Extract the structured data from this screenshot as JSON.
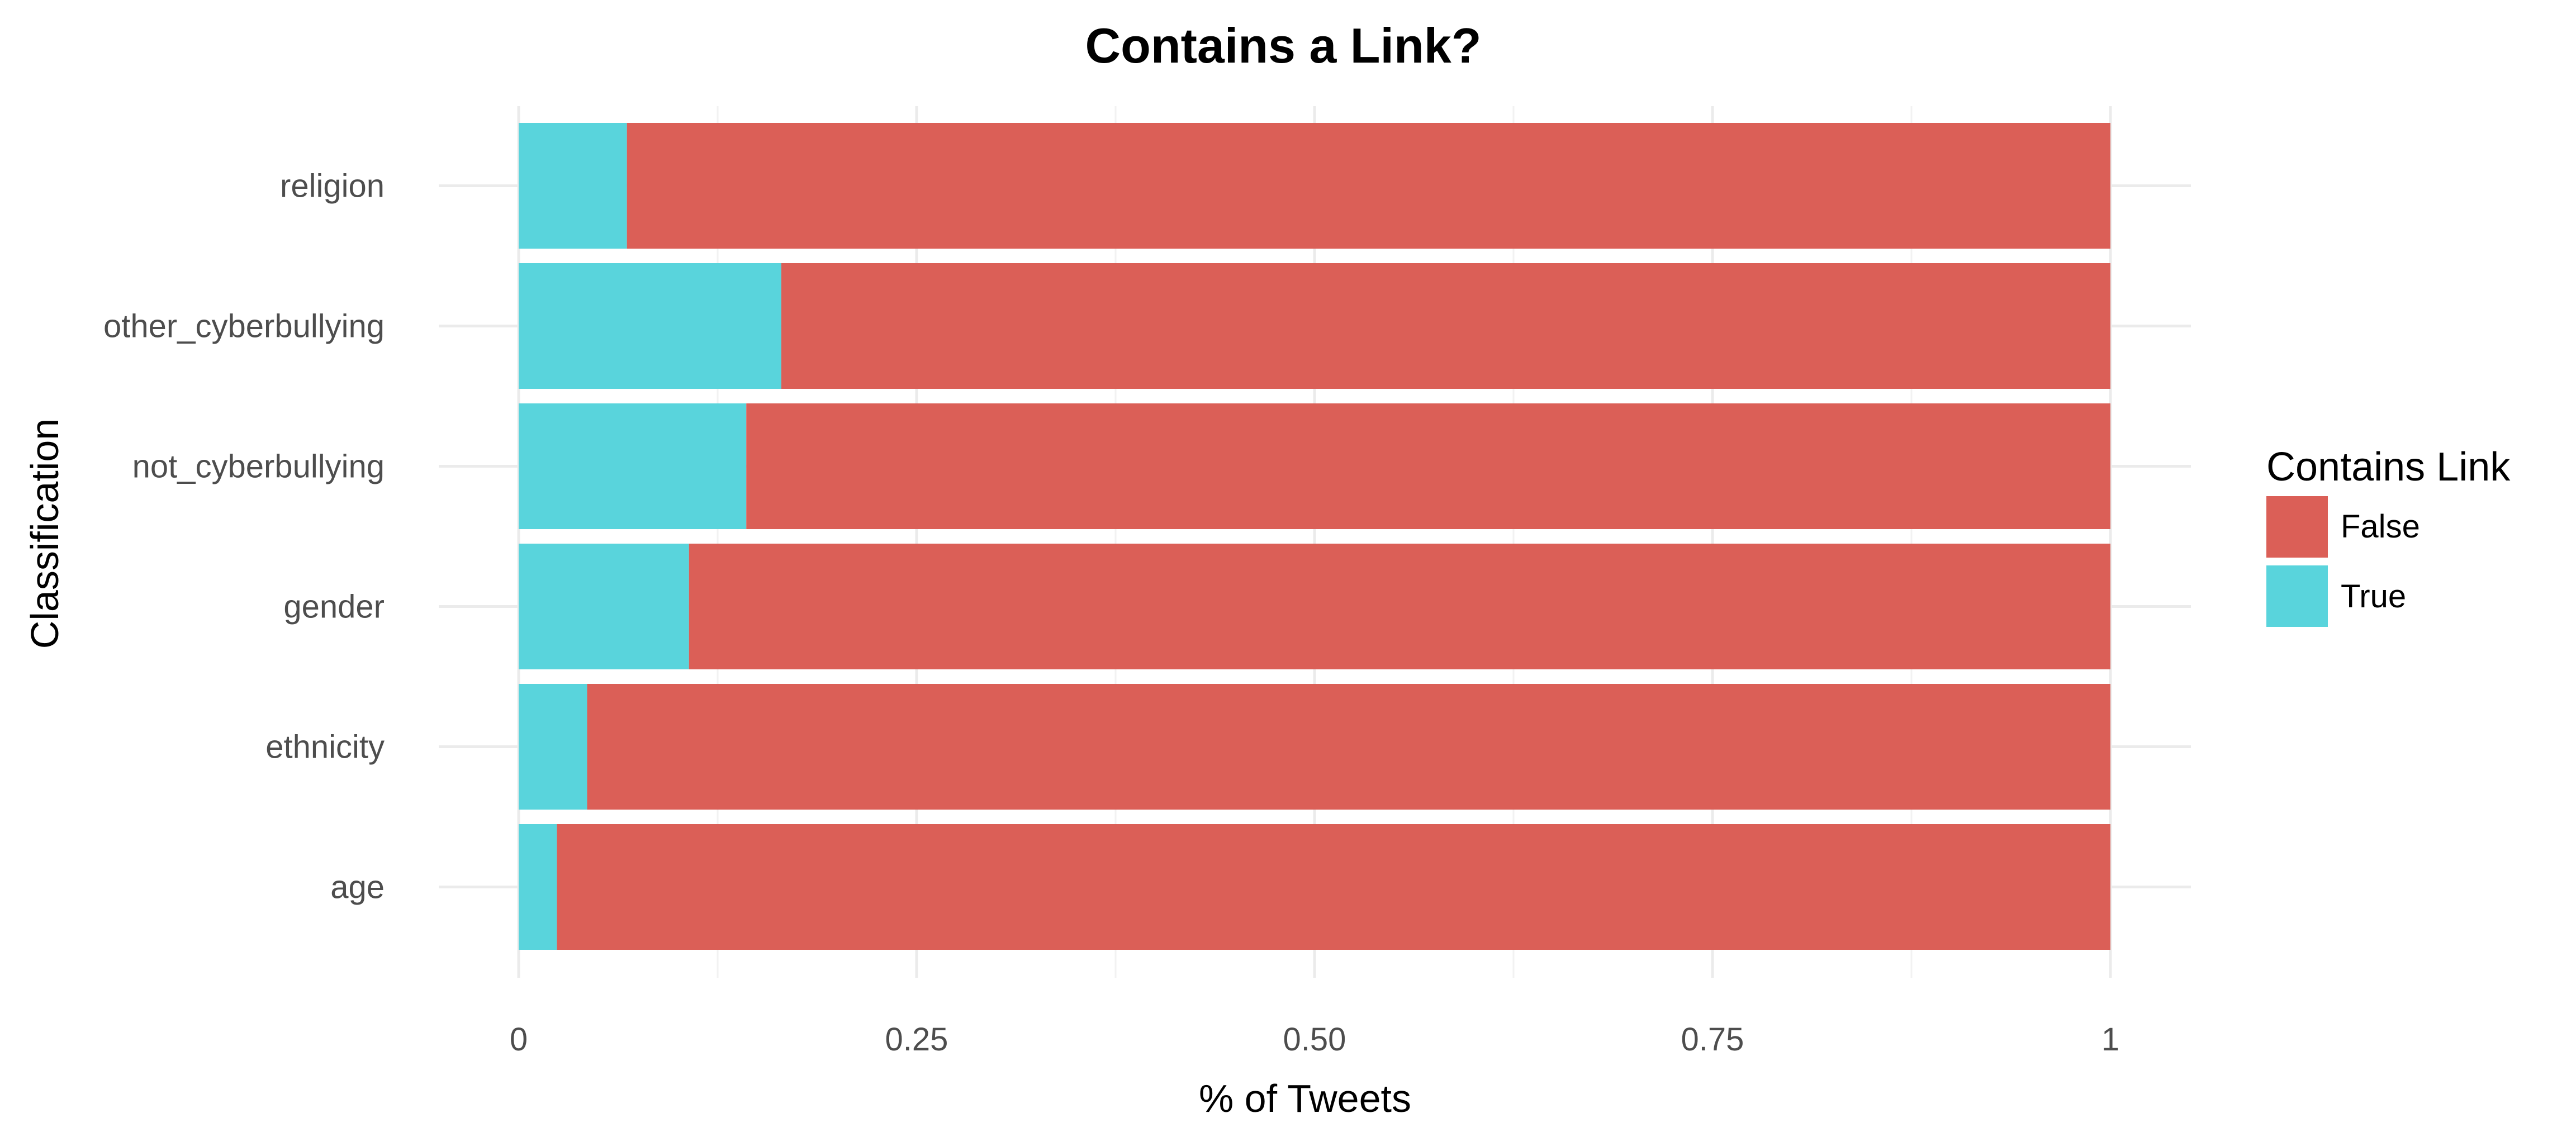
{
  "chart_data": {
    "type": "bar",
    "orientation": "horizontal",
    "stacked": true,
    "title": "Contains a Link?",
    "xlabel": "% of Tweets",
    "ylabel": "Classification",
    "xlim": [
      0,
      1
    ],
    "x_ticks": [
      "0",
      "0.25",
      "0.50",
      "0.75",
      "1"
    ],
    "categories": [
      "religion",
      "other_cyberbullying",
      "not_cyberbullying",
      "gender",
      "ethnicity",
      "age"
    ],
    "series": [
      {
        "name": "True",
        "color": "#59d4dc",
        "values": [
          0.068,
          0.165,
          0.143,
          0.107,
          0.043,
          0.024
        ]
      },
      {
        "name": "False",
        "color": "#db5f57",
        "values": [
          0.932,
          0.835,
          0.857,
          0.893,
          0.957,
          0.976
        ]
      }
    ],
    "legend": {
      "title": "Contains Link",
      "position": "right",
      "entries": [
        {
          "label": "False",
          "color": "#db5f57"
        },
        {
          "label": "True",
          "color": "#59d4dc"
        }
      ]
    },
    "grid": true
  }
}
